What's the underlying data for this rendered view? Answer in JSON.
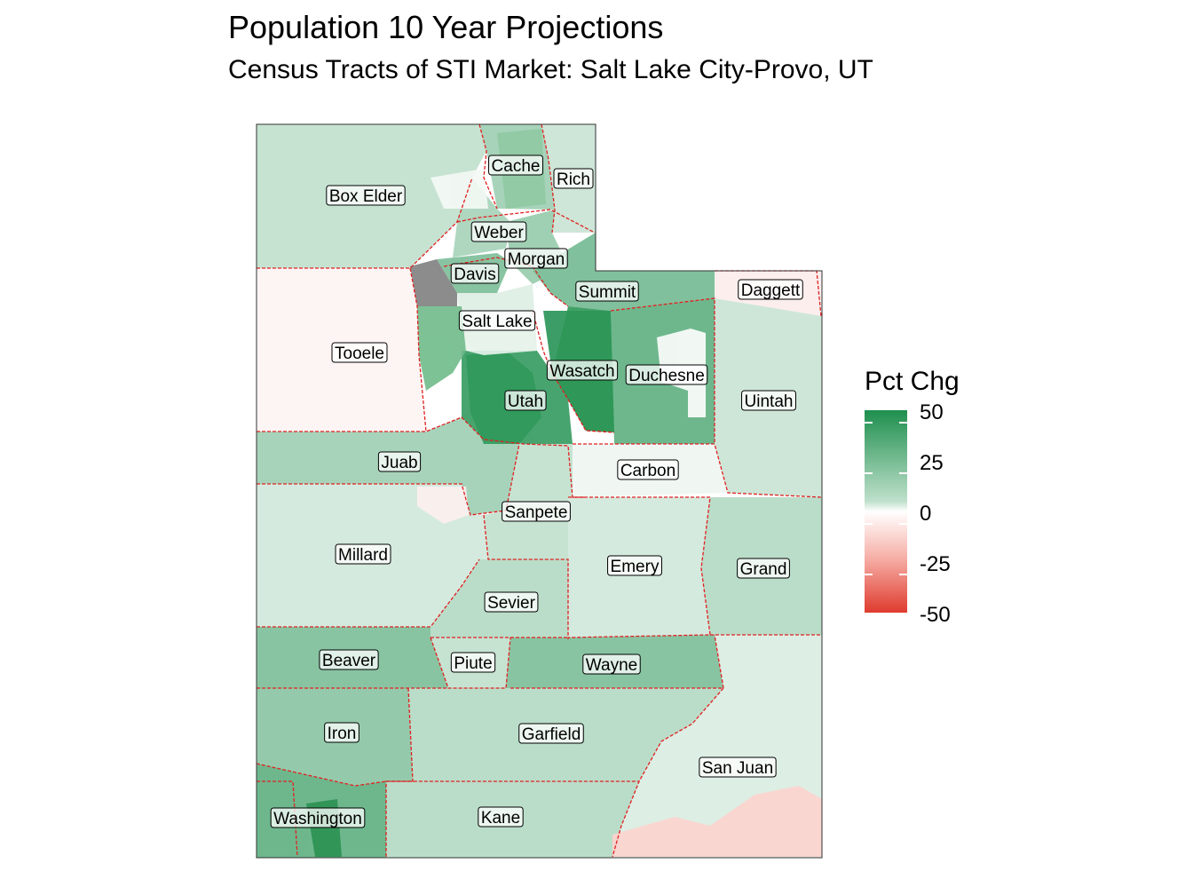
{
  "title": "Population 10 Year Projections",
  "subtitle": "Census Tracts of STI Market: Salt Lake City-Provo, UT",
  "legend": {
    "title": "Pct Chg",
    "ticks": [
      "50",
      "25",
      "0",
      "-25",
      "-50"
    ],
    "colors": {
      "high": "#1e8f4e",
      "mid": "#ffffff",
      "low": "#df3b2e",
      "missing": "#808080",
      "border": "#e02020"
    }
  },
  "counties": [
    {
      "name": "Cache",
      "pct_chg": 20
    },
    {
      "name": "Rich",
      "pct_chg": 10
    },
    {
      "name": "Box Elder",
      "pct_chg": 12
    },
    {
      "name": "Weber",
      "pct_chg": 18
    },
    {
      "name": "Morgan",
      "pct_chg": 22
    },
    {
      "name": "Davis",
      "pct_chg": 28
    },
    {
      "name": "Summit",
      "pct_chg": 30
    },
    {
      "name": "Daggett",
      "pct_chg": -5
    },
    {
      "name": "Salt Lake",
      "pct_chg": 5
    },
    {
      "name": "Tooele",
      "pct_chg": -3
    },
    {
      "name": "Wasatch",
      "pct_chg": 48
    },
    {
      "name": "Duchesne",
      "pct_chg": 35
    },
    {
      "name": "Uintah",
      "pct_chg": 10
    },
    {
      "name": "Utah",
      "pct_chg": 45
    },
    {
      "name": "Juab",
      "pct_chg": 20
    },
    {
      "name": "Carbon",
      "pct_chg": 1
    },
    {
      "name": "Sanpete",
      "pct_chg": 12
    },
    {
      "name": "Millard",
      "pct_chg": 8
    },
    {
      "name": "Emery",
      "pct_chg": 8
    },
    {
      "name": "Grand",
      "pct_chg": 15
    },
    {
      "name": "Sevier",
      "pct_chg": 15
    },
    {
      "name": "Beaver",
      "pct_chg": 28
    },
    {
      "name": "Piute",
      "pct_chg": 12
    },
    {
      "name": "Wayne",
      "pct_chg": 28
    },
    {
      "name": "Iron",
      "pct_chg": 25
    },
    {
      "name": "Garfield",
      "pct_chg": 15
    },
    {
      "name": "San Juan",
      "pct_chg": 6
    },
    {
      "name": "Washington",
      "pct_chg": 35
    },
    {
      "name": "Kane",
      "pct_chg": 15
    }
  ]
}
